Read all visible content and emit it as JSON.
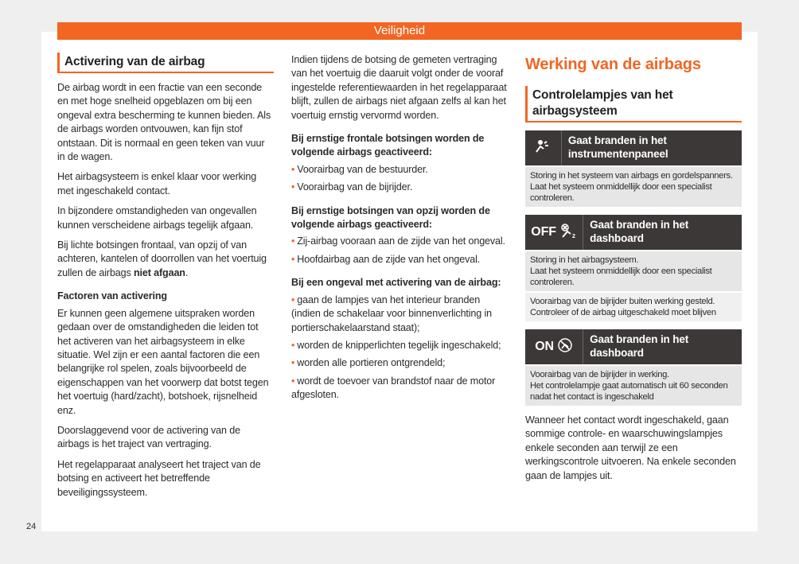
{
  "header": {
    "title": "Veiligheid"
  },
  "page_number": "24",
  "left": {
    "heading": "Activering van de airbag",
    "paragraphs": [
      "De airbag wordt in een fractie van een seconde en met hoge snelheid opgeblazen om bij een ongeval extra bescherming te kunnen bieden. Als de airbags worden ontvouwen, kan fijn stof ontstaan. Dit is normaal en geen teken van vuur in de wagen.",
      "Het airbagsysteem is enkel klaar voor werking met ingeschakeld contact.",
      "In bijzondere omstandigheden van ongevallen kunnen verscheidene airbags tegelijk afgaan."
    ],
    "p4_start": "Bij lichte botsingen frontaal, van opzij of van achteren, kantelen of doorrollen van het voertuig zullen de airbags ",
    "p4_bold": "niet afgaan",
    "p4_end": ".",
    "subheading": "Factoren van activering",
    "paragraphs2": [
      "Er kunnen geen algemene uitspraken worden gedaan over de omstandigheden die leiden tot het activeren van het airbagsysteem in elke situatie. Wel zijn er een aantal factoren die een belangrijke rol spelen, zoals bijvoorbeeld de eigenschappen van het voorwerp dat botst tegen het voertuig (hard/zacht), botshoek, rijsnelheid enz.",
      "Doorslaggevend voor de activering van de airbags is het traject van vertraging.",
      "Het regelapparaat analyseert het traject van de botsing en activeert het betreffende beveiligingssysteem."
    ]
  },
  "middle": {
    "intro": "Indien tijdens de botsing de gemeten vertraging van het voertuig die daaruit volgt onder de vooraf ingestelde referentiewaarden in het regelapparaat blijft, zullen de airbags niet afgaan zelfs al kan het voertuig ernstig vervormd worden.",
    "sections": [
      {
        "heading": "Bij ernstige frontale botsingen worden de volgende airbags geactiveerd:",
        "items": [
          "Voorairbag van de bestuurder.",
          "Voorairbag van de bijrijder."
        ]
      },
      {
        "heading": "Bij ernstige botsingen van opzij worden de volgende airbags geactiveerd:",
        "items": [
          "Zij-airbag vooraan aan de zijde van het ongeval.",
          "Hoofdairbag aan de zijde van het ongeval."
        ]
      },
      {
        "heading": "Bij een ongeval met activering van de airbag:",
        "items": [
          "gaan de lampjes van het interieur branden (indien de schakelaar voor binnenverlichting in portierschakelaarstand staat);",
          "worden de knipperlichten tegelijk ingeschakeld;",
          "worden alle portieren ontgrendeld;",
          "wordt de toevoer van brandstof naar de motor afgesloten."
        ]
      }
    ]
  },
  "right": {
    "title": "Werking van de airbags",
    "heading": "Controlelampjes van het airbagsysteem",
    "warnings": [
      {
        "icon": "airbag-warning-icon",
        "icon_text": "",
        "title": "Gaat branden in het instrumentenpaneel",
        "bodies": [
          "Storing in het systeem van airbags en gordelspanners.\nLaat het systeem onmiddellijk door een specialist controleren."
        ]
      },
      {
        "icon": "passenger-airbag-off-icon",
        "icon_text": "OFF",
        "title": "Gaat branden in het dashboard",
        "bodies": [
          "Storing in het airbagsysteem.\nLaat het systeem onmiddellijk door een specialist controleren.",
          "Voorairbag van de bijrijder buiten werking gesteld. Controleer of de airbag uitgeschakeld moet blijven"
        ]
      },
      {
        "icon": "passenger-airbag-on-icon",
        "icon_text": "ON",
        "title": "Gaat branden in het dashboard",
        "bodies": [
          "Voorairbag van de bijrijder in werking.\nHet controlelampje gaat automatisch uit 60 seconden nadat het contact is ingeschakeld"
        ]
      }
    ],
    "footer": "Wanneer het contact wordt ingeschakeld, gaan sommige controle- en waarschuwingslampjes enkele seconden aan terwijl ze een werkingscontrole uitvoeren. Na enkele seconden gaan de lampjes uit."
  },
  "colors": {
    "accent": "#f26522",
    "dark": "#3d3838"
  }
}
